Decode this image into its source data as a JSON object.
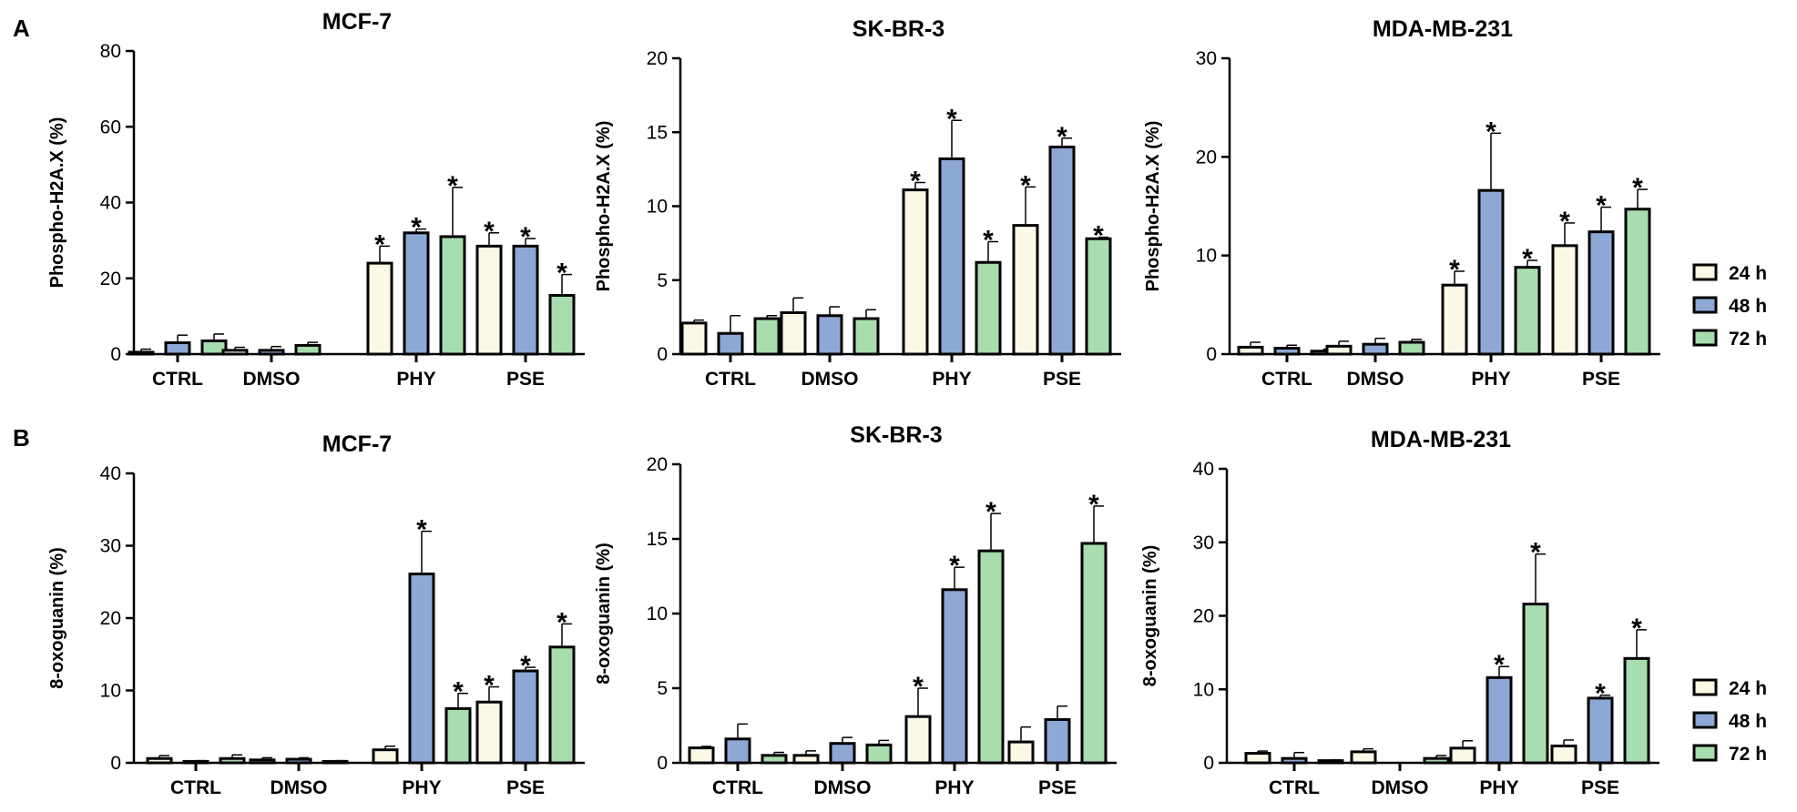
{
  "panel_labels": [
    "A",
    "B"
  ],
  "series_colors": {
    "24 h": "#fcf8e6",
    "48 h": "#8ea8d6",
    "72 h": "#a8ddb0"
  },
  "legend": {
    "items": [
      {
        "label": "24 h",
        "color": "#fcf8e6"
      },
      {
        "label": "48 h",
        "color": "#8ea8d6"
      },
      {
        "label": "72 h",
        "color": "#a8ddb0"
      }
    ]
  },
  "chart_data": [
    {
      "panel": "A",
      "type": "bar",
      "title": "MCF-7",
      "xlabel": "",
      "ylabel": "Phospho-H2A.X (%)",
      "ylim": [
        0,
        80
      ],
      "yticks": [
        0,
        20,
        40,
        60,
        80
      ],
      "categories": [
        "CTRL",
        "DMSO",
        "PHY",
        "PSE"
      ],
      "series": [
        {
          "name": "24 h",
          "values": [
            0.5,
            1.0,
            24,
            28.5
          ],
          "errors": [
            0.8,
            0.8,
            4.5,
            3.5
          ],
          "significant": [
            false,
            false,
            true,
            true
          ]
        },
        {
          "name": "48 h",
          "values": [
            3.0,
            1.0,
            32,
            28.5
          ],
          "errors": [
            2.0,
            1.0,
            1.0,
            2.0
          ],
          "significant": [
            false,
            false,
            true,
            true
          ]
        },
        {
          "name": "72 h",
          "values": [
            3.5,
            2.3,
            31,
            15.5
          ],
          "errors": [
            1.8,
            0.8,
            13,
            5.5
          ],
          "significant": [
            false,
            false,
            true,
            true
          ]
        }
      ]
    },
    {
      "panel": "A",
      "type": "bar",
      "title": "SK-BR-3",
      "xlabel": "",
      "ylabel": "Phospho-H2A.X (%)",
      "ylim": [
        0,
        20
      ],
      "yticks": [
        0,
        5,
        10,
        15,
        20
      ],
      "categories": [
        "CTRL",
        "DMSO",
        "PHY",
        "PSE"
      ],
      "series": [
        {
          "name": "24 h",
          "values": [
            2.1,
            2.8,
            11.1,
            8.7
          ],
          "errors": [
            0.2,
            1.0,
            0.5,
            2.6
          ],
          "significant": [
            false,
            false,
            true,
            true
          ]
        },
        {
          "name": "48 h",
          "values": [
            1.4,
            2.6,
            13.2,
            14.0
          ],
          "errors": [
            1.2,
            0.6,
            2.6,
            0.6
          ],
          "significant": [
            false,
            false,
            true,
            true
          ]
        },
        {
          "name": "72 h",
          "values": [
            2.4,
            2.4,
            6.2,
            7.8
          ],
          "errors": [
            0.2,
            0.6,
            1.4,
            0.1
          ],
          "significant": [
            false,
            false,
            true,
            true
          ]
        }
      ]
    },
    {
      "panel": "A",
      "type": "bar",
      "title": "MDA-MB-231",
      "xlabel": "",
      "ylabel": "Phospho-H2A.X (%)",
      "ylim": [
        0,
        30
      ],
      "yticks": [
        0,
        10,
        20,
        30
      ],
      "categories": [
        "CTRL",
        "DMSO",
        "PHY",
        "PSE"
      ],
      "series": [
        {
          "name": "24 h",
          "values": [
            0.7,
            0.8,
            7.0,
            11.0
          ],
          "errors": [
            0.5,
            0.5,
            1.4,
            2.3
          ],
          "significant": [
            false,
            false,
            true,
            true
          ]
        },
        {
          "name": "48 h",
          "values": [
            0.6,
            1.0,
            16.6,
            12.4
          ],
          "errors": [
            0.3,
            0.6,
            5.8,
            2.5
          ],
          "significant": [
            false,
            false,
            true,
            true
          ]
        },
        {
          "name": "72 h",
          "values": [
            0.3,
            1.2,
            8.8,
            14.7
          ],
          "errors": [
            0.2,
            0.3,
            0.7,
            2.0
          ],
          "significant": [
            false,
            false,
            true,
            true
          ]
        }
      ]
    },
    {
      "panel": "B",
      "type": "bar",
      "title": "MCF-7",
      "xlabel": "",
      "ylabel": "8-oxoguanin (%)",
      "ylim": [
        0,
        40
      ],
      "yticks": [
        0,
        10,
        20,
        30,
        40
      ],
      "categories": [
        "CTRL",
        "DMSO",
        "PHY",
        "PSE"
      ],
      "series": [
        {
          "name": "24 h",
          "values": [
            0.6,
            0.4,
            1.8,
            8.4
          ],
          "errors": [
            0.4,
            0.3,
            0.5,
            2.1
          ],
          "significant": [
            false,
            false,
            false,
            true
          ]
        },
        {
          "name": "48 h",
          "values": [
            0.2,
            0.5,
            26.1,
            12.7
          ],
          "errors": [
            0.1,
            0.2,
            5.9,
            0.5
          ],
          "significant": [
            false,
            false,
            true,
            true
          ]
        },
        {
          "name": "72 h",
          "values": [
            0.6,
            0.2,
            7.5,
            16.0
          ],
          "errors": [
            0.5,
            0.1,
            2.1,
            3.2
          ],
          "significant": [
            false,
            false,
            true,
            true
          ]
        }
      ]
    },
    {
      "panel": "B",
      "type": "bar",
      "title": "SK-BR-3",
      "xlabel": "",
      "ylabel": "8-oxoguanin (%)",
      "ylim": [
        0,
        20
      ],
      "yticks": [
        0,
        5,
        10,
        15,
        20
      ],
      "categories": [
        "CTRL",
        "DMSO",
        "PHY",
        "PSE"
      ],
      "series": [
        {
          "name": "24 h",
          "values": [
            1.0,
            0.5,
            3.1,
            1.4
          ],
          "errors": [
            0.1,
            0.3,
            1.9,
            1.0
          ],
          "significant": [
            false,
            false,
            true,
            false
          ]
        },
        {
          "name": "48 h",
          "values": [
            1.6,
            1.3,
            11.6,
            2.9
          ],
          "errors": [
            1.0,
            0.4,
            1.5,
            0.9
          ],
          "significant": [
            false,
            false,
            true,
            false
          ]
        },
        {
          "name": "72 h",
          "values": [
            0.5,
            1.2,
            14.2,
            14.7
          ],
          "errors": [
            0.2,
            0.3,
            2.5,
            2.5
          ],
          "significant": [
            false,
            false,
            true,
            true
          ]
        }
      ]
    },
    {
      "panel": "B",
      "type": "bar",
      "title": "MDA-MB-231",
      "xlabel": "",
      "ylabel": "8-oxoguanin (%)",
      "ylim": [
        0,
        40
      ],
      "yticks": [
        0,
        10,
        20,
        30,
        40
      ],
      "categories": [
        "CTRL",
        "DMSO",
        "PHY",
        "PSE"
      ],
      "series": [
        {
          "name": "24 h",
          "values": [
            1.3,
            1.5,
            2.0,
            2.3
          ],
          "errors": [
            0.3,
            0.4,
            1.0,
            0.8
          ],
          "significant": [
            false,
            false,
            false,
            false
          ]
        },
        {
          "name": "48 h",
          "values": [
            0.6,
            0.0,
            11.6,
            8.8
          ],
          "errors": [
            0.8,
            0.0,
            1.5,
            0.4
          ],
          "significant": [
            false,
            false,
            true,
            true
          ]
        },
        {
          "name": "72 h",
          "values": [
            0.3,
            0.6,
            21.6,
            14.2
          ],
          "errors": [
            0.1,
            0.4,
            6.8,
            3.9
          ],
          "significant": [
            false,
            false,
            true,
            true
          ]
        }
      ]
    }
  ]
}
